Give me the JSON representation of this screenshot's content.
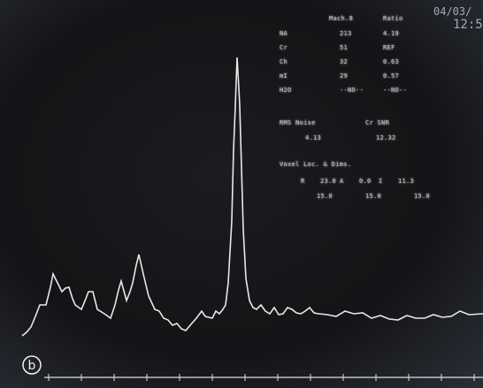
{
  "header": {
    "date": "04/03/",
    "time": "12:5"
  },
  "table": {
    "columns": [
      "Mach.8",
      "Ratio"
    ],
    "rows": [
      [
        "NA",
        "213",
        "4.19"
      ],
      [
        "Cr",
        "51",
        "REF"
      ],
      [
        "Ch",
        "32",
        "0.63"
      ],
      [
        "mI",
        "29",
        "0.57"
      ],
      [
        "H2O",
        "--NO--",
        "--NO--"
      ]
    ]
  },
  "noise": {
    "labels": [
      "RMS Noise",
      "Cr SNR"
    ],
    "values": [
      "4.13",
      "12.32"
    ]
  },
  "voxel": {
    "title": "Voxel Loc. & Dims.",
    "rows": [
      [
        "R",
        "23.0",
        "A",
        "0.0",
        "I",
        "11.3"
      ],
      [
        "15.0",
        "15.0",
        "15.0"
      ]
    ]
  },
  "panel_label": "b"
}
